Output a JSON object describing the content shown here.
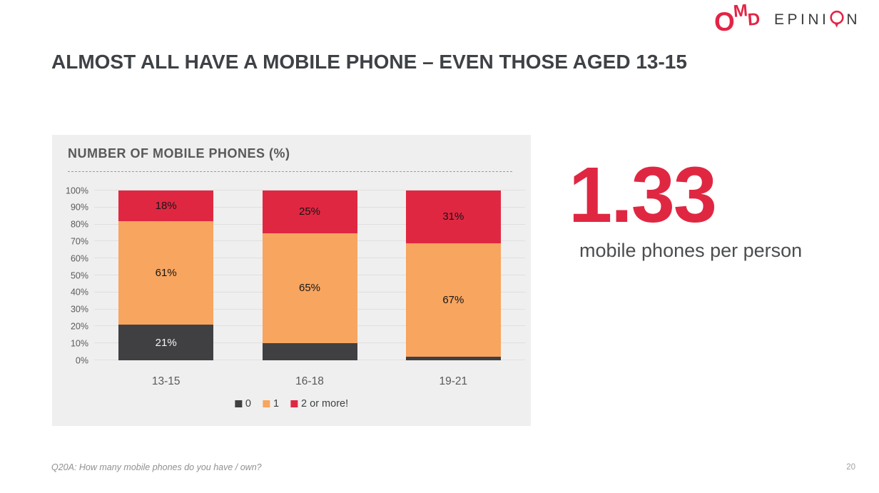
{
  "logo": {
    "omd_letters": [
      "O",
      "M",
      "D"
    ],
    "epinion_prefix": "EPINI",
    "epinion_o": "O",
    "epinion_suffix": "N"
  },
  "title": "ALMOST ALL HAVE A MOBILE PHONE – EVEN THOSE AGED 13-15",
  "stat": {
    "value": "1.33",
    "label": "mobile phones per person"
  },
  "footer": {
    "note": "Q20A: How many mobile phones do you have / own?",
    "page": "20"
  },
  "colors": {
    "brand_red": "#e32445",
    "chart_red": "#e02742",
    "chart_orange": "#f7a55f",
    "chart_dark": "#404043",
    "panel_background": "#efefef",
    "title_text": "#3e4145"
  },
  "chart_data": {
    "type": "bar",
    "stacked": true,
    "title": "NUMBER OF MOBILE PHONES (%)",
    "categories": [
      "13-15",
      "16-18",
      "19-21"
    ],
    "series": [
      {
        "name": "0",
        "color": "#404043",
        "label_color": "#f5f5f5",
        "values": [
          21,
          10,
          2
        ],
        "labels": [
          "21%",
          "",
          ""
        ]
      },
      {
        "name": "1",
        "color": "#f7a55f",
        "label_color": "#161616",
        "values": [
          61,
          65,
          67
        ],
        "labels": [
          "61%",
          "65%",
          "67%"
        ]
      },
      {
        "name": "2 or more!",
        "color": "#e02742",
        "label_color": "#161616",
        "values": [
          18,
          25,
          31
        ],
        "labels": [
          "18%",
          "25%",
          "31%"
        ]
      }
    ],
    "xlabel": "",
    "ylabel": "",
    "ylim": [
      0,
      100
    ],
    "yticks": [
      "0%",
      "10%",
      "20%",
      "30%",
      "40%",
      "50%",
      "60%",
      "70%",
      "80%",
      "90%",
      "100%"
    ],
    "grid": true,
    "legend_position": "bottom"
  }
}
